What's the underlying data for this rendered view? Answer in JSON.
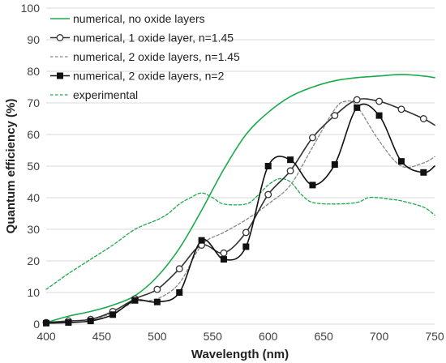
{
  "chart_data": {
    "type": "line",
    "xlabel": "Wavelength (nm)",
    "ylabel": "Quantum efficiency (%)",
    "xlim": [
      400,
      750
    ],
    "ylim": [
      0,
      100
    ],
    "x_ticks": [
      400,
      450,
      500,
      550,
      600,
      650,
      700,
      750
    ],
    "y_ticks": [
      0,
      10,
      20,
      30,
      40,
      50,
      60,
      70,
      80,
      90,
      100
    ],
    "grid": true,
    "legend_position": "top-left",
    "series": [
      {
        "name": "numerical, no oxide layers",
        "color": "#1aab4b",
        "style": "solid",
        "marker": "none",
        "x": [
          400,
          420,
          440,
          460,
          480,
          500,
          520,
          540,
          560,
          580,
          600,
          620,
          640,
          660,
          680,
          700,
          720,
          740,
          750
        ],
        "y": [
          0.5,
          2.5,
          4,
          6,
          9,
          15,
          24,
          36,
          49,
          60,
          67,
          72,
          75,
          77,
          78,
          78.5,
          79,
          78.5,
          78
        ]
      },
      {
        "name": "numerical, 1 oxide layer, n=1.45",
        "color": "#333333",
        "style": "solid",
        "marker": "circle",
        "x": [
          400,
          420,
          440,
          460,
          480,
          500,
          520,
          540,
          560,
          580,
          600,
          620,
          640,
          660,
          680,
          700,
          720,
          740,
          750
        ],
        "y": [
          0.5,
          1,
          1.5,
          4,
          8,
          11,
          17.5,
          25,
          22.5,
          29,
          41,
          48.5,
          59,
          66,
          71,
          70.5,
          68,
          65,
          63
        ]
      },
      {
        "name": "numerical, 2 oxide layers, n=1.45",
        "color": "#888888",
        "style": "dashed",
        "marker": "none",
        "x": [
          400,
          420,
          440,
          460,
          480,
          500,
          520,
          540,
          560,
          580,
          600,
          620,
          640,
          660,
          670,
          680,
          700,
          720,
          740,
          750
        ],
        "y": [
          0.5,
          1,
          1.5,
          3.5,
          7,
          8,
          13,
          25,
          29,
          33,
          38,
          44,
          56,
          68,
          70.5,
          69,
          58,
          50,
          51,
          53
        ]
      },
      {
        "name": "numerical, 2 oxide layers, n=2",
        "color": "#111111",
        "style": "solid",
        "marker": "square",
        "x": [
          400,
          420,
          440,
          460,
          480,
          500,
          520,
          540,
          560,
          580,
          600,
          620,
          640,
          660,
          680,
          700,
          720,
          740,
          750
        ],
        "y": [
          0.3,
          0.5,
          1,
          3,
          7.5,
          7,
          10,
          26.5,
          20.5,
          24.5,
          50,
          52,
          44,
          50.5,
          68.5,
          66,
          51.5,
          48,
          50
        ]
      },
      {
        "name": "experimental",
        "color": "#1aab4b",
        "style": "dashed",
        "marker": "none",
        "x": [
          400,
          410,
          420,
          440,
          460,
          480,
          500,
          510,
          520,
          530,
          540,
          550,
          560,
          580,
          590,
          600,
          610,
          620,
          630,
          640,
          660,
          680,
          690,
          700,
          710,
          720,
          740,
          750
        ],
        "y": [
          11,
          13.5,
          16,
          20.5,
          25,
          30,
          33,
          35,
          38,
          40,
          41.5,
          40,
          38,
          38,
          40.5,
          44,
          46,
          45,
          41,
          38.5,
          38,
          38.5,
          40,
          40,
          39.5,
          39,
          37,
          34.5
        ]
      }
    ]
  }
}
